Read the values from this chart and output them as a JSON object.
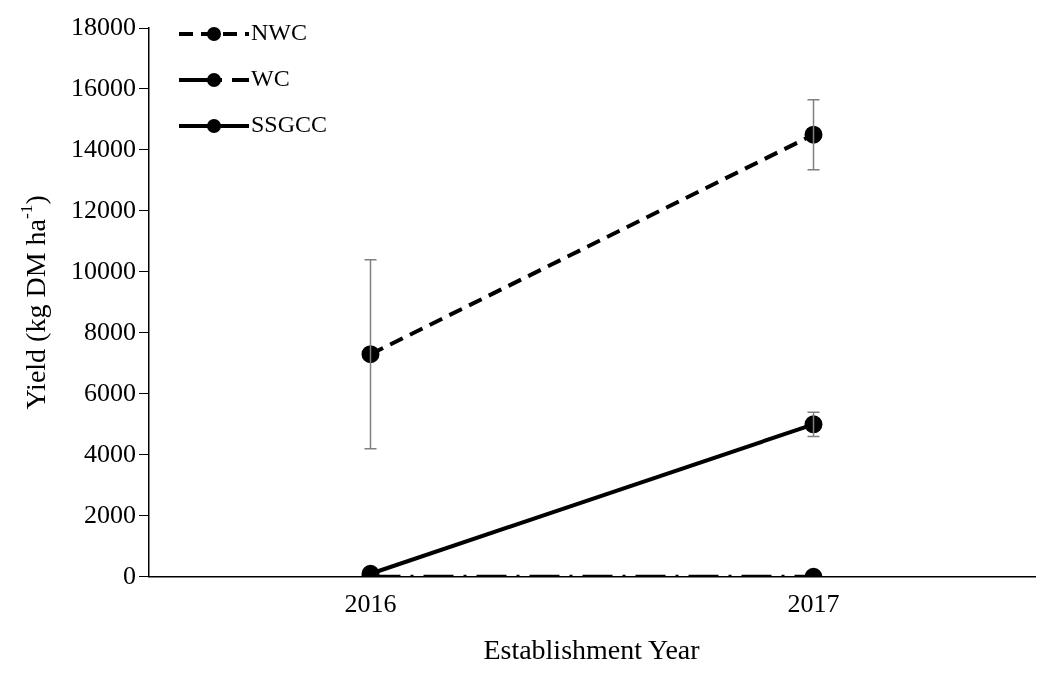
{
  "chart_data": {
    "type": "line",
    "xlabel": "Establishment Year",
    "ylabel": "Yield (kg DM ha$^{-1}$)",
    "categories": [
      "2016",
      "2017"
    ],
    "series": [
      {
        "name": "NWC",
        "color": "#000000",
        "line_style": "dashed",
        "values": [
          7300,
          14500
        ],
        "errors": [
          3100,
          1150
        ]
      },
      {
        "name": "WC",
        "color": "#000000",
        "line_style": "dashdot",
        "values": [
          0,
          0
        ]
      },
      {
        "name": "SSGCC",
        "color": "#000000",
        "line_style": "solid",
        "values": [
          100,
          5000
        ],
        "errors": [
          null,
          400
        ]
      }
    ],
    "ylim": [
      0,
      18000
    ],
    "yticks": [
      0,
      2000,
      4000,
      6000,
      8000,
      10000,
      12000,
      14000,
      16000,
      18000
    ],
    "grid": false,
    "legend": "top left",
    "marker": "circle"
  }
}
